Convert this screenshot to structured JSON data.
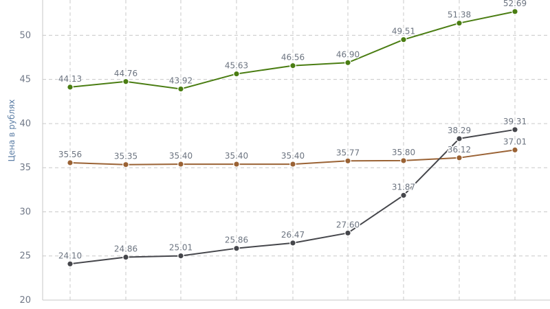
{
  "chart_data": {
    "type": "line",
    "title": "",
    "xlabel": "",
    "ylabel": "Цена в рублях",
    "grid": true,
    "legend": "none",
    "ylim": [
      20,
      54
    ],
    "y_ticks": [
      20,
      25,
      30,
      35,
      40,
      45,
      50
    ],
    "x": [
      1,
      2,
      3,
      4,
      5,
      6,
      7,
      8,
      9
    ],
    "series": [
      {
        "color": "#4a7d12",
        "values": [
          44.13,
          44.76,
          43.92,
          45.63,
          46.56,
          46.9,
          49.51,
          51.38,
          52.69
        ],
        "labels": [
          "44.13",
          "44.76",
          "43.92",
          "45.63",
          "46.56",
          "46.90",
          "49.51",
          "51.38",
          "52.69"
        ]
      },
      {
        "color": "#9a6234",
        "values": [
          35.56,
          35.35,
          35.4,
          35.4,
          35.4,
          35.77,
          35.8,
          36.12,
          37.01
        ],
        "labels": [
          "35.56",
          "35.35",
          "35.40",
          "35.40",
          "35.40",
          "35.77",
          "35.80",
          "36.12",
          "37.01"
        ]
      },
      {
        "color": "#45464b",
        "values": [
          24.1,
          24.86,
          25.01,
          25.86,
          26.47,
          27.6,
          31.87,
          38.29,
          39.31
        ],
        "labels": [
          "24.10",
          "24.86",
          "25.01",
          "25.86",
          "26.47",
          "27.60",
          "31.87",
          "38.29",
          "39.31"
        ]
      }
    ]
  }
}
